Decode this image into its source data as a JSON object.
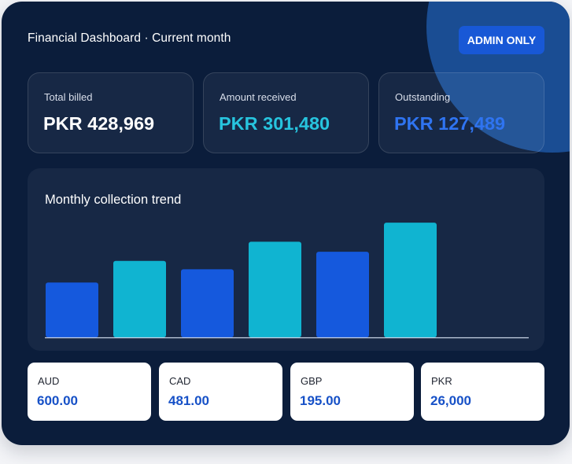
{
  "header": {
    "title": "Financial Dashboard · Current month",
    "admin_badge": "ADMIN ONLY"
  },
  "kpis": [
    {
      "label": "Total billed",
      "value": "PKR 428,969",
      "color": "#ffffff"
    },
    {
      "label": "Amount received",
      "value": "PKR 301,480",
      "color": "#27c4de"
    },
    {
      "label": "Outstanding",
      "value": "PKR 127,489",
      "color": "#2f74f1"
    }
  ],
  "chart": {
    "title": "Monthly collection trend"
  },
  "chart_data": {
    "type": "bar",
    "values": [
      66,
      92,
      82,
      115,
      103,
      138
    ],
    "ylim": [
      0,
      140
    ],
    "colors": [
      "#1559dd",
      "#10b4d1",
      "#1559dd",
      "#10b4d1",
      "#1559dd",
      "#10b4d1"
    ],
    "grid": false
  },
  "currencies": [
    {
      "code": "AUD",
      "amount": "600.00"
    },
    {
      "code": "CAD",
      "amount": "481.00"
    },
    {
      "code": "GBP",
      "amount": "195.00"
    },
    {
      "code": "PKR",
      "amount": "26,000"
    }
  ]
}
